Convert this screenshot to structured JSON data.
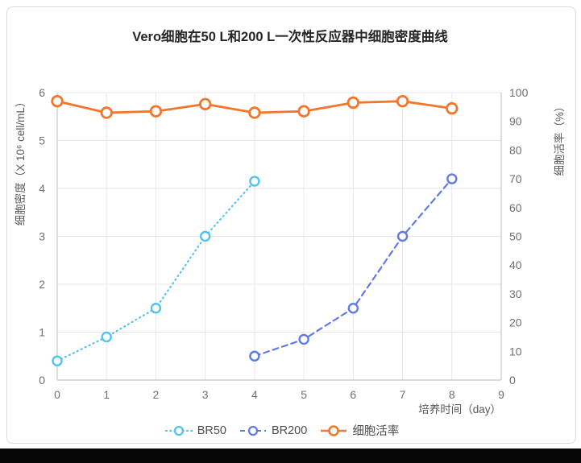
{
  "chart_data": {
    "type": "line",
    "title": "Vero细胞在50 L和200 L一次性反应器中细胞密度曲线",
    "xlabel": "培养时间（day）",
    "ylabel_left": "细胞密度（X 10⁶ cell/mL）",
    "ylabel_right": "细胞活率（%）",
    "xlim": [
      0,
      9
    ],
    "ylim_left": [
      0,
      6
    ],
    "ylim_right": [
      0,
      100
    ],
    "x_ticks": [
      0,
      1,
      2,
      3,
      4,
      5,
      6,
      7,
      8,
      9
    ],
    "left_ticks": [
      0,
      1,
      2,
      3,
      4,
      5,
      6
    ],
    "right_ticks": [
      0,
      10,
      20,
      30,
      40,
      50,
      60,
      70,
      80,
      90,
      100
    ],
    "grid": true,
    "legend_position": "bottom",
    "series": [
      {
        "name": "BR50",
        "axis": "left",
        "color": "#53c3f1",
        "line_style": "dotted",
        "x": [
          0,
          1,
          2,
          3,
          4
        ],
        "values": [
          0.4,
          0.9,
          1.5,
          3.0,
          4.15
        ]
      },
      {
        "name": "BR200",
        "axis": "left",
        "color": "#5f7be8",
        "line_style": "dashed",
        "x": [
          4,
          5,
          6,
          7,
          8
        ],
        "values": [
          0.5,
          0.85,
          1.5,
          3.0,
          4.2
        ]
      },
      {
        "name": "细胞活率",
        "axis": "right",
        "color": "#f4762c",
        "line_style": "solid",
        "x": [
          0,
          1,
          2,
          3,
          4,
          5,
          6,
          7,
          8
        ],
        "values": [
          97,
          93,
          93.5,
          96,
          93,
          93.5,
          96.5,
          97,
          94.5
        ]
      }
    ]
  }
}
